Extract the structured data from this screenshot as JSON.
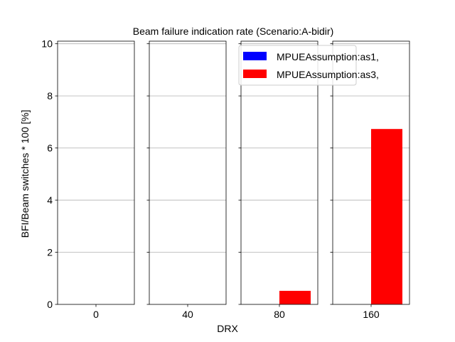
{
  "chart_data": {
    "type": "bar",
    "title": "Beam failure indication rate (Scenario:A-bidir)",
    "xlabel": "DRX",
    "ylabel": "BFI/Beam switches * 100 [%]",
    "ylim": [
      0,
      10.1
    ],
    "yticks": [
      0,
      2,
      4,
      6,
      8,
      10
    ],
    "grid": "horizontal",
    "legend_position": "top-right",
    "categories": [
      "0",
      "40",
      "80",
      "160"
    ],
    "series": [
      {
        "name": "MPUEAssumption:as1,",
        "color": "#0000ff",
        "values": [
          0,
          0,
          0,
          0
        ]
      },
      {
        "name": "MPUEAssumption:as3,",
        "color": "#ff0000",
        "values": [
          0,
          0,
          0.52,
          6.73
        ]
      }
    ]
  }
}
